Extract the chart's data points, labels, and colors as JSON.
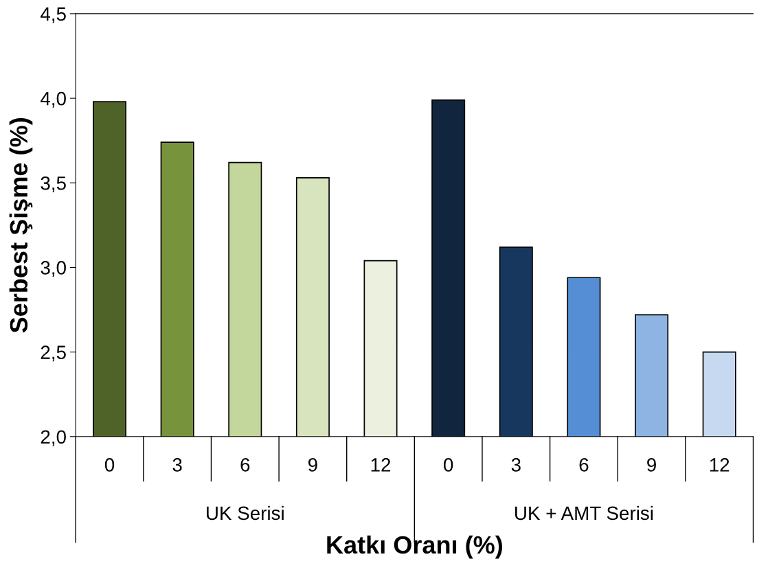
{
  "chart_data": {
    "type": "bar",
    "xlabel": "Katkı Oranı (%)",
    "ylabel": "Serbest Şişme (%)",
    "categories": [
      "0",
      "3",
      "6",
      "9",
      "12",
      "0",
      "3",
      "6",
      "9",
      "12"
    ],
    "values": [
      3.98,
      3.74,
      3.62,
      3.53,
      3.04,
      3.99,
      3.12,
      2.94,
      2.72,
      2.5
    ],
    "colors": [
      "#4f6228",
      "#77933c",
      "#c3d69b",
      "#d7e4bd",
      "#ebf1de",
      "#11253f",
      "#17375e",
      "#558ed5",
      "#8eb4e3",
      "#c6d9f1"
    ],
    "annotations": [
      "UK Serisi",
      "UK + AMT Serisi"
    ],
    "ylim": [
      2.0,
      4.5
    ],
    "yticks": [
      {
        "value": 2.0,
        "label": "2,0"
      },
      {
        "value": 2.5,
        "label": "2,5"
      },
      {
        "value": 3.0,
        "label": "3,0"
      },
      {
        "value": 3.5,
        "label": "3,5"
      },
      {
        "value": 4.0,
        "label": "4,0"
      },
      {
        "value": 4.5,
        "label": "4,5"
      }
    ],
    "grid": false,
    "legend": false
  }
}
